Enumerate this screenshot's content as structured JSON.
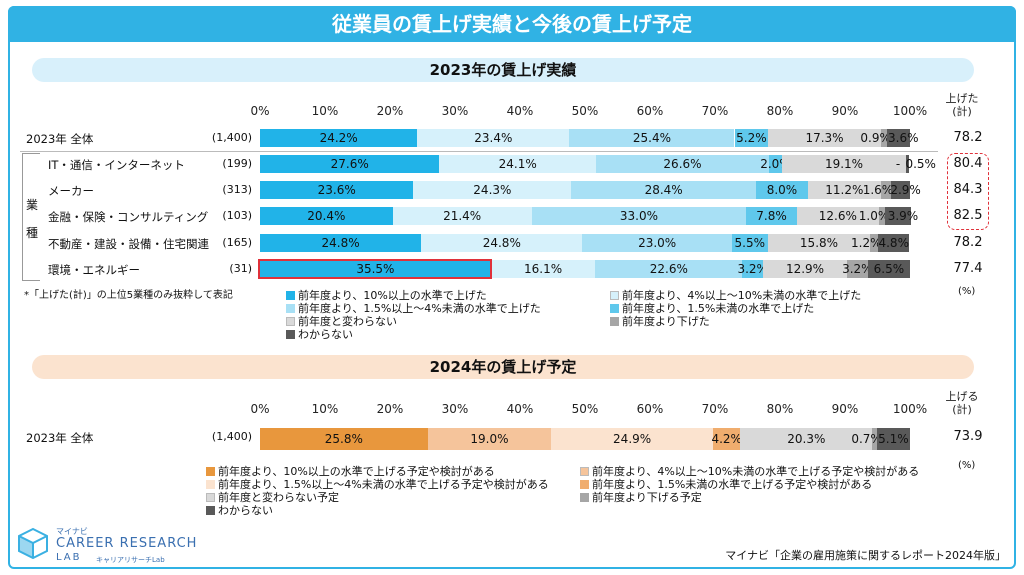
{
  "title": "従業員の賃上げ実績と今後の賃上げ予定",
  "section_2023": "2023年の賃上げ実績",
  "section_2024": "2024年の賃上げ予定",
  "ticks": [
    "0%",
    "10%",
    "20%",
    "30%",
    "40%",
    "50%",
    "60%",
    "70%",
    "80%",
    "90%",
    "100%"
  ],
  "total_header_2023": [
    "上げた",
    "(計)"
  ],
  "total_header_2024": [
    "上げる",
    "(計)"
  ],
  "gyoshu_label": [
    "業",
    "種"
  ],
  "note_2023": "*「上げた(計)」の上位5業種のみ抜粋して表記",
  "pct_unit": "(%)",
  "source": "マイナビ「企業の雇用施策に関するレポート2024年版」",
  "logo": {
    "small": "マイナビ",
    "main": "CAREER RESEARCH",
    "lab": "LAB",
    "sub": "キャリアリサーチLab"
  },
  "colors_2023": [
    "#21b3e8",
    "#d6f1fb",
    "#a8e0f5",
    "#5fc8ec",
    "#d9d9d9",
    "#a6a6a6",
    "#595959"
  ],
  "colors_2024": [
    "#e8973d",
    "#f5c49b",
    "#fbe3cf",
    "#f0ad6e",
    "#d9d9d9",
    "#a6a6a6",
    "#595959"
  ],
  "legend_2023": [
    "前年度より、10%以上の水準で上げた",
    "前年度より、4%以上～10%未満の水準で上げた",
    "前年度より、1.5%以上～4%未満の水準で上げた",
    "前年度より、1.5%未満の水準で上げた",
    "前年度と変わらない",
    "前年度より下げた",
    "わからない"
  ],
  "legend_2024": [
    "前年度より、10%以上の水準で上げる予定や検討がある",
    "前年度より、4%以上～10%未満の水準で上げる予定や検討がある",
    "前年度より、1.5%以上～4%未満の水準で上げる予定や検討がある",
    "前年度より、1.5%未満の水準で上げる予定や検討がある",
    "前年度と変わらない予定",
    "前年度より下げる予定",
    "わからない"
  ],
  "chart_data": [
    {
      "type": "bar",
      "stacked": true,
      "orientation": "horizontal",
      "title": "2023年の賃上げ実績",
      "xlim": [
        0,
        100
      ],
      "rows": [
        {
          "label": "2023年 全体",
          "n": "(1,400)",
          "values": [
            24.2,
            23.4,
            25.4,
            5.2,
            17.3,
            0.9,
            3.6
          ],
          "labels": [
            "24.2%",
            "23.4%",
            "25.4%",
            "5.2%",
            "17.3%",
            "0.9%",
            "3.6%"
          ],
          "total": "78.2"
        },
        {
          "label": "IT・通信・インターネット",
          "n": "(199)",
          "values": [
            27.6,
            24.1,
            26.6,
            2.0,
            19.1,
            0.0,
            0.5
          ],
          "labels": [
            "27.6%",
            "24.1%",
            "26.6%",
            "2.0%",
            "19.1%",
            "-",
            "0.5%"
          ],
          "total": "80.4"
        },
        {
          "label": "メーカー",
          "n": "(313)",
          "values": [
            23.6,
            24.3,
            28.4,
            8.0,
            11.2,
            1.6,
            2.9
          ],
          "labels": [
            "23.6%",
            "24.3%",
            "28.4%",
            "8.0%",
            "11.2%",
            "1.6%",
            "2.9%"
          ],
          "total": "84.3"
        },
        {
          "label": "金融・保険・コンサルティング",
          "n": "(103)",
          "values": [
            20.4,
            21.4,
            33.0,
            7.8,
            12.6,
            1.0,
            3.9
          ],
          "labels": [
            "20.4%",
            "21.4%",
            "33.0%",
            "7.8%",
            "12.6%",
            "1.0%",
            "3.9%"
          ],
          "total": "82.5"
        },
        {
          "label": "不動産・建設・設備・住宅関連",
          "n": "(165)",
          "values": [
            24.8,
            24.8,
            23.0,
            5.5,
            15.8,
            1.2,
            4.8
          ],
          "labels": [
            "24.8%",
            "24.8%",
            "23.0%",
            "5.5%",
            "15.8%",
            "1.2%",
            "4.8%"
          ],
          "total": "78.2"
        },
        {
          "label": "環境・エネルギー",
          "n": "(31)",
          "values": [
            35.5,
            16.1,
            22.6,
            3.2,
            12.9,
            3.2,
            6.5
          ],
          "labels": [
            "35.5%",
            "16.1%",
            "22.6%",
            "3.2%",
            "12.9%",
            "3.2%",
            "6.5%"
          ],
          "total": "77.4"
        }
      ]
    },
    {
      "type": "bar",
      "stacked": true,
      "orientation": "horizontal",
      "title": "2024年の賃上げ予定",
      "xlim": [
        0,
        100
      ],
      "rows": [
        {
          "label": "2023年 全体",
          "n": "(1,400)",
          "values": [
            25.8,
            19.0,
            24.9,
            4.2,
            20.3,
            0.7,
            5.1
          ],
          "labels": [
            "25.8%",
            "19.0%",
            "24.9%",
            "4.2%",
            "20.3%",
            "0.7%",
            "5.1%"
          ],
          "total": "73.9"
        }
      ]
    }
  ]
}
